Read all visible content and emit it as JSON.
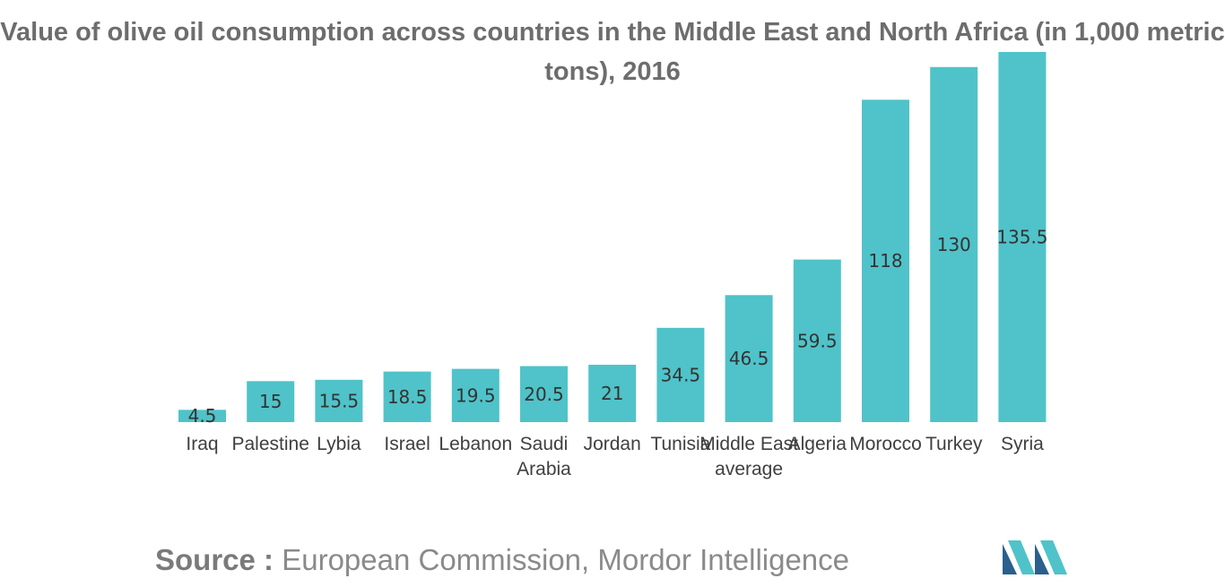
{
  "chart_data": {
    "type": "bar",
    "title": "Value of olive oil consumption across countries in the Middle East and North Africa (in 1,000 metric tons), 2016",
    "categories": [
      [
        "Iraq"
      ],
      [
        "Palestine"
      ],
      [
        "Lybia"
      ],
      [
        "Israel"
      ],
      [
        "Lebanon"
      ],
      [
        "Saudi",
        "Arabia"
      ],
      [
        "Jordan"
      ],
      [
        "Tunisia"
      ],
      [
        "Middle East",
        "average"
      ],
      [
        "Algeria"
      ],
      [
        "Morocco"
      ],
      [
        "Turkey"
      ],
      [
        "Syria"
      ]
    ],
    "values": [
      4.5,
      15,
      15.5,
      18.5,
      19.5,
      20.5,
      21,
      34.5,
      46.5,
      59.5,
      118,
      130,
      135.5
    ],
    "data_labels": [
      "4.5",
      "15",
      "15.5",
      "18.5",
      "19.5",
      "20.5",
      "21",
      "34.5",
      "46.5",
      "59.5",
      "118",
      "130",
      "135.5"
    ],
    "xlabel": "",
    "ylabel": "",
    "ylim": [
      0,
      135.5
    ],
    "grid": false,
    "legend": "none",
    "bar_color": "#4fc3c9"
  },
  "source": {
    "label": "Source :",
    "text": " European Commission, Mordor Intelligence"
  },
  "logo": {
    "icon": "mordor-intelligence-logo-icon",
    "colors": [
      "#2b5f8e",
      "#4fc3c9"
    ]
  }
}
